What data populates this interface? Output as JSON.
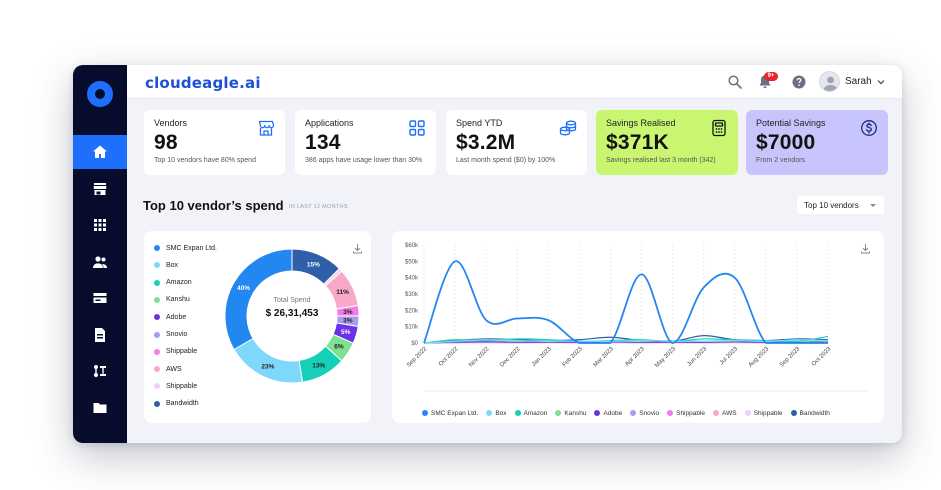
{
  "app": {
    "brand": "cloudeagle.ai",
    "notification_count": "9+",
    "user_name": "Sarah"
  },
  "sidebar": {
    "items": [
      {
        "name": "home-icon",
        "active": true
      },
      {
        "name": "store-icon",
        "active": false
      },
      {
        "name": "apps-grid-icon",
        "active": false
      },
      {
        "name": "users-icon",
        "active": false
      },
      {
        "name": "cards-icon",
        "active": false
      },
      {
        "name": "document-icon",
        "active": false
      },
      {
        "name": "workflow-icon",
        "active": false
      },
      {
        "name": "folder-icon",
        "active": false
      }
    ]
  },
  "cards": [
    {
      "title": "Vendors",
      "value": "98",
      "sub": "Top 10 vendors have 80% spend",
      "icon": "store-icon"
    },
    {
      "title": "Applications",
      "value": "134",
      "sub": "386 apps have usage lower than 30%",
      "icon": "apps-grid-icon"
    },
    {
      "title": "Spend YTD",
      "value": "$3.2M",
      "sub": "Last month spend ($0) by  100%",
      "icon": "coins-icon"
    },
    {
      "title": "Savings Realised",
      "value": "$371K",
      "sub": "Savings realised last 3 month (342)",
      "icon": "calculator-icon"
    },
    {
      "title": "Potential Savings",
      "value": "$7000",
      "sub": "From 2 vendors",
      "icon": "dollar-icon"
    }
  ],
  "section": {
    "title": "Top 10 vendor’s spend",
    "subtitle": "IN LAST 12 MONTHS",
    "filter": "Top 10 vendors"
  },
  "colors": {
    "accent": "#1f6fff",
    "series": [
      "#2287f0",
      "#7ed8fb",
      "#15d0b9",
      "#7ee090",
      "#6a32e8",
      "#a99cf0",
      "#f27de6",
      "#f8a8c8",
      "#ecd2f2",
      "#2f5fa8"
    ]
  },
  "chart_data": [
    {
      "type": "pie",
      "center_label": "Total Spend",
      "center_value": "$ 26,31,453",
      "legend": [
        "SMC Expan Ltd.",
        "Box",
        "Amazon",
        "Kanshu",
        "Adobe",
        "Snovio",
        "Shippable",
        "AWS",
        "Shippable",
        "Bandwidth"
      ],
      "slices": [
        {
          "label": "SMC Expan Ltd.",
          "value": 40,
          "text": "40%"
        },
        {
          "label": "Box",
          "value": 23,
          "text": "23%"
        },
        {
          "label": "Amazon",
          "value": 13,
          "text": "13%"
        },
        {
          "label": "Kanshu",
          "value": 6,
          "text": "6%"
        },
        {
          "label": "Adobe",
          "value": 5,
          "text": "5%"
        },
        {
          "label": "Snovio",
          "value": 3,
          "text": "3%"
        },
        {
          "label": "Shippable",
          "value": 3,
          "text": "3%"
        },
        {
          "label": "AWS",
          "value": 11,
          "text": "11%"
        },
        {
          "label": "Shippable",
          "value": 1,
          "text": ""
        },
        {
          "label": "Bandwidth",
          "value": 15,
          "text": "15%"
        }
      ]
    },
    {
      "type": "line",
      "categories": [
        "Sep 2022",
        "Oct 2022",
        "Nov 2022",
        "Dec 2022",
        "Jan 2023",
        "Feb 2023",
        "Mar 2023",
        "Apr 2023",
        "May 2023",
        "Jun 2023",
        "Jul 2023",
        "Aug 2023",
        "Sep 2023",
        "Oct 2023"
      ],
      "y_ticks": [
        "$0",
        "$10k",
        "$20k",
        "$30k",
        "$40k",
        "$50k",
        "$60k"
      ],
      "ylim": [
        0,
        60000
      ],
      "series": [
        {
          "name": "SMC Expan Ltd.",
          "values": [
            0,
            50000,
            14000,
            15000,
            14000,
            0,
            0,
            42000,
            0,
            34000,
            40000,
            0,
            0,
            0
          ]
        },
        {
          "name": "Box",
          "values": [
            0,
            1000,
            2000,
            1500,
            1000,
            1200,
            1000,
            1500,
            1000,
            1200,
            1500,
            1000,
            2000,
            1500
          ]
        },
        {
          "name": "Amazon",
          "values": [
            0,
            2000,
            1500,
            2500,
            2000,
            1000,
            1500,
            2000,
            1000,
            2500,
            2000,
            1500,
            1000,
            4000
          ]
        },
        {
          "name": "Kanshu",
          "values": [
            0,
            1000,
            1500,
            1000,
            1500,
            1000,
            1200,
            1000,
            1500,
            1000,
            1200,
            1500,
            1000,
            1500
          ]
        },
        {
          "name": "Adobe",
          "values": [
            0,
            500,
            800,
            500,
            600,
            500,
            800,
            500,
            600,
            500,
            800,
            500,
            600,
            500
          ]
        },
        {
          "name": "Snovio",
          "values": [
            0,
            300,
            500,
            300,
            400,
            300,
            500,
            300,
            400,
            300,
            500,
            300,
            400,
            300
          ]
        },
        {
          "name": "Shippable",
          "values": [
            0,
            200,
            300,
            200,
            300,
            200,
            300,
            200,
            300,
            200,
            300,
            200,
            300,
            200
          ]
        },
        {
          "name": "AWS",
          "values": [
            0,
            400,
            500,
            400,
            500,
            400,
            500,
            400,
            500,
            400,
            500,
            400,
            500,
            400
          ]
        },
        {
          "name": "Shippable",
          "values": [
            0,
            200,
            200,
            200,
            200,
            200,
            200,
            200,
            200,
            200,
            200,
            200,
            200,
            200
          ]
        },
        {
          "name": "Bandwidth",
          "values": [
            0,
            1500,
            2500,
            2000,
            1500,
            2000,
            3500,
            1500,
            1000,
            4500,
            2000,
            1500,
            2500,
            2000
          ]
        }
      ]
    }
  ]
}
